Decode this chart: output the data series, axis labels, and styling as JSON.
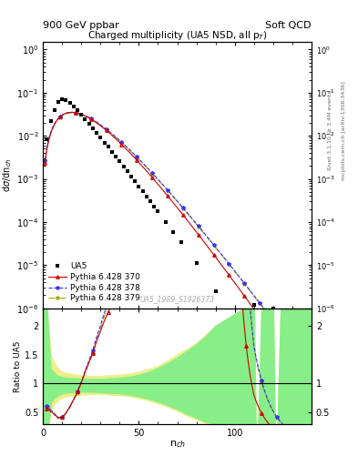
{
  "title_left": "900 GeV ppbar",
  "title_right": "Soft QCD",
  "plot_title": "Charged multiplicity (UA5 NSD, all p_{T})",
  "xlabel": "n_{ch}",
  "ylabel_top": "dσ/dn_{ch}",
  "ylabel_bottom": "Ratio to UA5",
  "right_label_top": "Rivet 3.1.10, ≥ 3.4M events",
  "right_label_bottom": "mcplots.cern.ch [arXiv:1306.3436]",
  "watermark": "UA5_1989_S1926373",
  "color_ua5": "#000000",
  "color_py370": "#cc0000",
  "color_py378": "#3333ff",
  "color_py379": "#aaaa00",
  "bg_yellow": "#eeee88",
  "bg_green": "#88ee88"
}
